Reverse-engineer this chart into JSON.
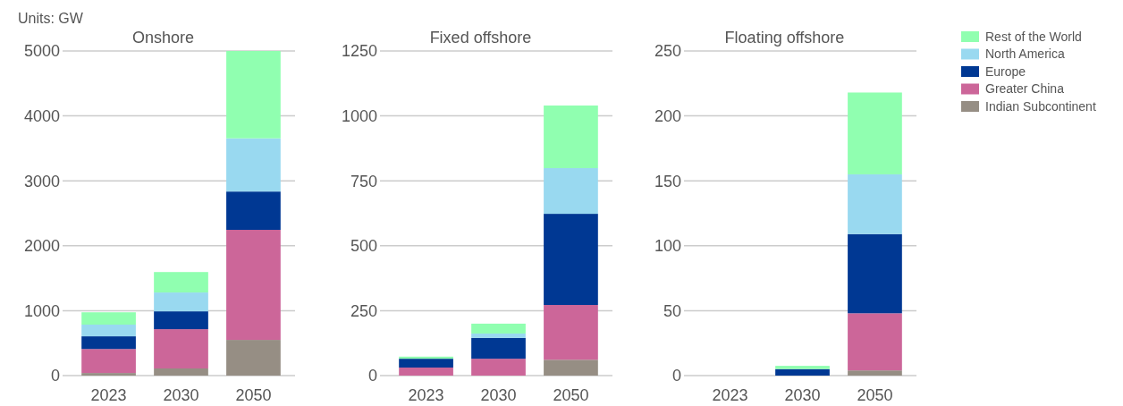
{
  "chart_data": [
    {
      "type": "bar",
      "stacked": true,
      "title": "Onshore",
      "annotations": [
        "Units: GW"
      ],
      "categories": [
        "2023",
        "2030",
        "2050"
      ],
      "ylim": [
        0,
        5000
      ],
      "yticks": [
        0,
        1000,
        2000,
        3000,
        4000,
        5000
      ],
      "grid": "y",
      "legend": false,
      "series": [
        {
          "color": "#968e84",
          "values": [
            40,
            110,
            550
          ]
        },
        {
          "color": "#cc6699",
          "values": [
            370,
            605,
            1695
          ]
        },
        {
          "color": "#003893",
          "values": [
            195,
            275,
            590
          ]
        },
        {
          "color": "#99d9f0",
          "values": [
            180,
            290,
            820
          ]
        },
        {
          "color": "#90ffb0",
          "values": [
            190,
            315,
            1345
          ]
        }
      ]
    },
    {
      "type": "bar",
      "stacked": true,
      "title": "Fixed offshore",
      "categories": [
        "2023",
        "2030",
        "2050"
      ],
      "ylim": [
        0,
        1250
      ],
      "yticks": [
        0,
        250,
        500,
        750,
        1000,
        1250
      ],
      "grid": "y",
      "legend": false,
      "series": [
        {
          "color": "#968e84",
          "values": [
            0,
            0,
            61
          ]
        },
        {
          "color": "#cc6699",
          "values": [
            31,
            65,
            211
          ]
        },
        {
          "color": "#003893",
          "values": [
            34,
            80,
            351
          ]
        },
        {
          "color": "#99d9f0",
          "values": [
            0,
            17,
            176
          ]
        },
        {
          "color": "#90ffb0",
          "values": [
            8,
            38,
            241
          ]
        }
      ]
    },
    {
      "type": "bar",
      "stacked": true,
      "title": "Floating offshore",
      "categories": [
        "2023",
        "2030",
        "2050"
      ],
      "ylim": [
        0,
        250
      ],
      "yticks": [
        0,
        50,
        100,
        150,
        200,
        250
      ],
      "grid": "y",
      "legend": "right",
      "series": [
        {
          "name": "Indian Subcontinent",
          "color": "#968e84",
          "values": [
            0,
            0,
            4
          ]
        },
        {
          "name": "Greater China",
          "color": "#cc6699",
          "values": [
            0,
            0,
            44
          ]
        },
        {
          "name": "Europe",
          "color": "#003893",
          "values": [
            0,
            5,
            61
          ]
        },
        {
          "name": "North America",
          "color": "#99d9f0",
          "values": [
            0,
            0,
            46
          ]
        },
        {
          "name": "Rest of the World",
          "color": "#90ffb0",
          "values": [
            0,
            2.5,
            63
          ]
        }
      ]
    }
  ]
}
